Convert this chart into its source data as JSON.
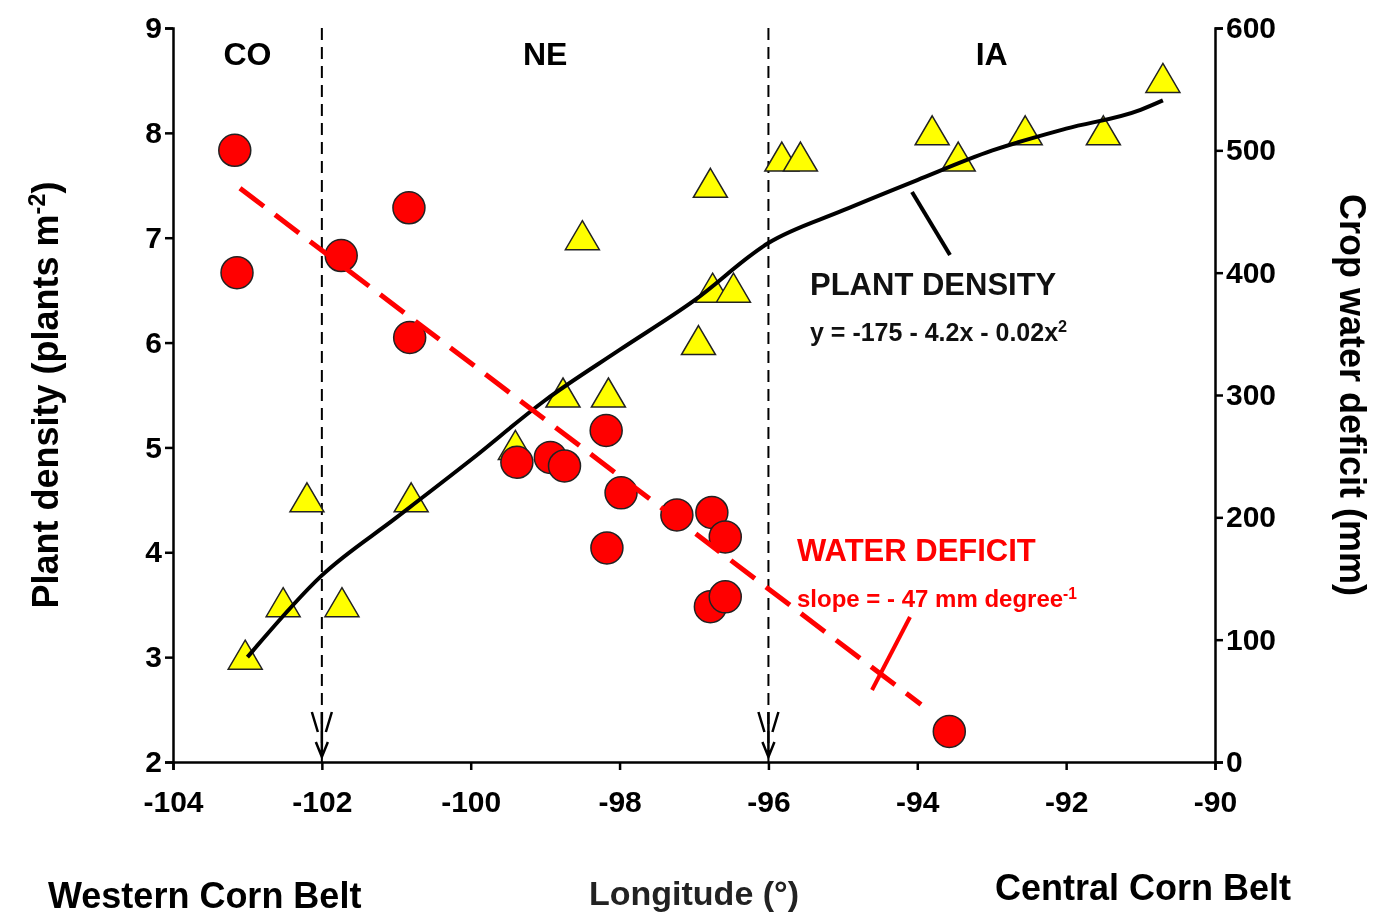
{
  "chart_data": {
    "type": "scatter",
    "xlabel": "Longitude (°)",
    "ylabel": "Plant density (plants m$^{-2}$)",
    "y2label": "Crop water deficit (mm)",
    "xlim": [
      -104,
      -90
    ],
    "xticks": [
      -104,
      -102,
      -100,
      -98,
      -96,
      -94,
      -92,
      -90
    ],
    "ylim": [
      2,
      9
    ],
    "yticks": [
      2,
      3,
      4,
      5,
      6,
      7,
      8,
      9
    ],
    "y2lim": [
      0,
      600
    ],
    "y2ticks": [
      0,
      100,
      200,
      300,
      400,
      500,
      600
    ],
    "grid": false,
    "series": [
      {
        "marker": "triangle",
        "color": "#ffff00",
        "x": [
          -103.03,
          -102.52,
          -102.2,
          -101.73,
          -100.8,
          -99.4,
          -98.76,
          -98.15,
          -98.5,
          -96.94,
          -96.78,
          -96.75,
          -96.47,
          -95.82,
          -95.57,
          -93.8,
          -93.45,
          -92.55,
          -91.5,
          -90.7
        ],
        "values": [
          3.0,
          3.5,
          4.5,
          3.5,
          4.5,
          5.0,
          5.5,
          5.5,
          7.0,
          6.0,
          7.5,
          6.5,
          6.5,
          7.75,
          7.75,
          8.0,
          7.75,
          8.0,
          8.0,
          8.5
        ]
      },
      {
        "marker": "circle",
        "color": "#ff0000",
        "axis": "y2",
        "x": [
          -103.17,
          -103.14,
          -100.83,
          -101.74,
          -100.82,
          -99.38,
          -98.93,
          -98.74,
          -98.18,
          -97.98,
          -98.17,
          -97.23,
          -96.76,
          -96.58,
          -96.78,
          -96.58,
          -93.57
        ],
        "values": [
          500,
          400,
          453,
          414,
          347,
          245,
          249,
          242,
          271,
          220,
          175,
          202,
          204,
          184,
          127,
          135,
          25
        ]
      },
      {
        "type": "line",
        "line_style": "solid",
        "color": "#000000",
        "x": [
          -103,
          -102,
          -101,
          -100,
          -99,
          -98,
          -97,
          -96,
          -95,
          -94,
          -93,
          -92,
          -91,
          -90.7
        ],
        "values": [
          3.0,
          3.78,
          4.33,
          4.88,
          5.45,
          5.93,
          6.4,
          6.95,
          7.26,
          7.55,
          7.83,
          8.04,
          8.22,
          8.31
        ]
      },
      {
        "type": "line",
        "line_style": "dashed",
        "color": "#ff0000",
        "axis": "y2",
        "x": [
          -103.1,
          -93.95
        ],
        "values": [
          469,
          47
        ]
      }
    ],
    "ref_lines": [
      {
        "axis": "x",
        "value": -102,
        "color": "#000000",
        "line_style": "dashed"
      },
      {
        "axis": "x",
        "value": -96,
        "color": "#000000",
        "line_style": "dashed"
      }
    ],
    "annotations": [
      "PLANT DENSITY",
      "y = -175 - 4.2x - 0.02x$^{2}$",
      "WATER DEFICIT",
      "slope = - 47 mm degree$^{-1}$",
      "Western Corn Belt",
      "Central Corn Belt",
      "CO",
      "NE",
      "IA"
    ]
  }
}
